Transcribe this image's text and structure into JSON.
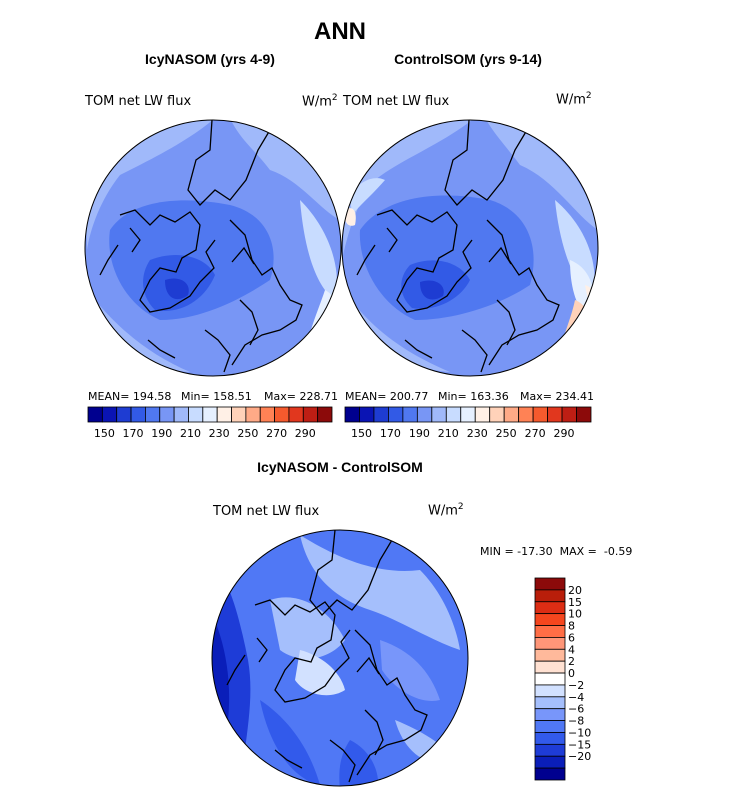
{
  "figure_title": "ANN",
  "colors": {
    "abs_scale": [
      "#00008f",
      "#0a14b4",
      "#1e3cd2",
      "#325ae6",
      "#5078f0",
      "#7896f5",
      "#a0b9fa",
      "#c8dcff",
      "#e6f0ff",
      "#fff0e6",
      "#ffd2b9",
      "#ffaa87",
      "#ff8255",
      "#f55a2d",
      "#e1371e",
      "#be1e14",
      "#8c0a0a"
    ],
    "diff_scale": [
      "#00008f",
      "#0a1eb9",
      "#1e3cd7",
      "#325aeb",
      "#5078f5",
      "#7896fa",
      "#a5bffc",
      "#d2e1ff",
      "#ffffff",
      "#ffe1d2",
      "#ffb99b",
      "#ff9678",
      "#ff6e46",
      "#f5461e",
      "#dc2d14",
      "#b91e0a",
      "#8c0a0a"
    ]
  },
  "charts": [
    {
      "panel": "icy",
      "title": "IcyNASOM (yrs 4-9)",
      "variable": "TOM net LW flux",
      "units_base": "W/m",
      "units_exp": "2",
      "stats": {
        "mean_label": "MEAN= 194.58",
        "min_label": "Min= 158.51",
        "max_label": "Max= 228.71"
      },
      "colorbar_ticks": [
        "150",
        "170",
        "190",
        "210",
        "230",
        "250",
        "270",
        "290"
      ]
    },
    {
      "panel": "control",
      "title": "ControlSOM (yrs 9-14)",
      "variable": "TOM net LW flux",
      "units_base": "W/m",
      "units_exp": "2",
      "stats": {
        "mean_label": "MEAN= 200.77",
        "min_label": "Min= 163.36",
        "max_label": "Max= 234.41"
      },
      "colorbar_ticks": [
        "150",
        "170",
        "190",
        "210",
        "230",
        "250",
        "270",
        "290"
      ]
    },
    {
      "panel": "diff",
      "title": "IcyNASOM - ControlSOM",
      "variable": "TOM net LW flux",
      "units_base": "W/m",
      "units_exp": "2",
      "stats_line": "MIN = -17.30  MAX =  -0.59",
      "colorbar_ticks": [
        "20",
        "15",
        "10",
        "8",
        "6",
        "4",
        "2",
        "0",
        "−2",
        "−4",
        "−6",
        "−8",
        "−10",
        "−15",
        "−20"
      ]
    }
  ],
  "chart_data": [
    {
      "type": "heatmap",
      "title": "IcyNASOM (yrs 4-9)",
      "variable": "TOM net LW flux",
      "units": "W/m^2",
      "projection": "north polar stereographic",
      "mean": 194.58,
      "min": 158.51,
      "max": 228.71,
      "colorbar_levels": [
        150,
        160,
        170,
        180,
        190,
        200,
        210,
        220,
        230,
        240,
        250,
        260,
        270,
        280,
        290
      ]
    },
    {
      "type": "heatmap",
      "title": "ControlSOM (yrs 9-14)",
      "variable": "TOM net LW flux",
      "units": "W/m^2",
      "projection": "north polar stereographic",
      "mean": 200.77,
      "min": 163.36,
      "max": 234.41,
      "colorbar_levels": [
        150,
        160,
        170,
        180,
        190,
        200,
        210,
        220,
        230,
        240,
        250,
        260,
        270,
        280,
        290
      ]
    },
    {
      "type": "heatmap",
      "title": "IcyNASOM - ControlSOM",
      "variable": "TOM net LW flux",
      "units": "W/m^2",
      "projection": "north polar stereographic",
      "min": -17.3,
      "max": -0.59,
      "colorbar_levels": [
        -20,
        -15,
        -10,
        -8,
        -6,
        -4,
        -2,
        0,
        2,
        4,
        6,
        8,
        10,
        15,
        20
      ]
    }
  ]
}
